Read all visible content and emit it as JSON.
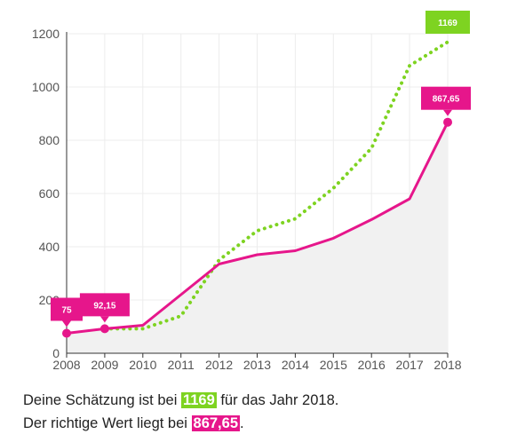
{
  "chart_data": {
    "type": "line",
    "x": [
      2008,
      2009,
      2010,
      2011,
      2012,
      2013,
      2014,
      2015,
      2016,
      2017,
      2018
    ],
    "xlim": [
      2008,
      2018
    ],
    "ylim": [
      0,
      1200
    ],
    "yticks": [
      0,
      200,
      400,
      600,
      800,
      1000,
      1200
    ],
    "grid": true,
    "series": [
      {
        "role": "actual",
        "color": "#e6168b",
        "style": "solid",
        "area_fill": true,
        "values": [
          75,
          92.15,
          105,
          220,
          335,
          370,
          385,
          432,
          502,
          580,
          867.65
        ]
      },
      {
        "role": "guess",
        "color": "#7ed321",
        "style": "dotted",
        "values": [
          null,
          92.15,
          92,
          140,
          350,
          460,
          505,
          620,
          770,
          1080,
          1169
        ]
      }
    ],
    "callouts": [
      {
        "x": 2008,
        "y": 75,
        "label": "75",
        "color": "#e6168b",
        "pointer": true
      },
      {
        "x": 2009,
        "y": 92.15,
        "label": "92,15",
        "color": "#e6168b",
        "pointer": true
      },
      {
        "x": 2018,
        "y": 867.65,
        "label": "867,65",
        "color": "#e6168b",
        "pointer": true
      },
      {
        "x": 2018,
        "y": 1169,
        "label": "1169",
        "color": "#7ed321",
        "pointer": false
      }
    ]
  },
  "summary": {
    "line1_before": "Deine Schätzung ist bei ",
    "line1_value": "1169",
    "line1_after": " für das Jahr 2018.",
    "line2_before": "Der richtige Wert liegt bei ",
    "line2_value": "867,65",
    "line2_after": "."
  }
}
